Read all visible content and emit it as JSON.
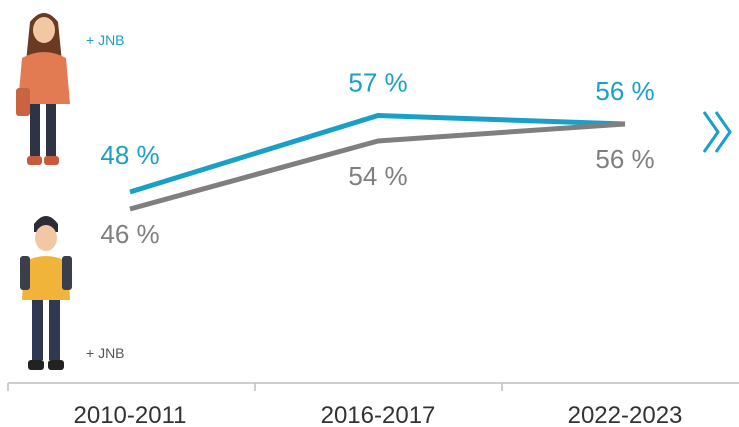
{
  "chart_data": {
    "type": "line",
    "categories": [
      "2010-2011",
      "2016-2017",
      "2022-2023"
    ],
    "series": [
      {
        "name": "+ JNB",
        "group": "girls",
        "color": "#1aa0c6",
        "values": [
          48,
          57,
          56
        ],
        "labels": [
          "48 %",
          "57 %",
          "56 %"
        ]
      },
      {
        "name": "+ JNB",
        "group": "boys",
        "color": "#7f7f7f",
        "values": [
          46,
          54,
          56
        ],
        "labels": [
          "46 %",
          "54 %",
          "56 %"
        ]
      }
    ],
    "ylim": [
      40,
      60
    ],
    "grid": false,
    "legend": "left, with illustrated figures"
  },
  "figures": {
    "girl_label": "+ JNB",
    "boy_label": "+ JNB"
  },
  "icons": {
    "next": "double-chevron-right-icon"
  },
  "colors": {
    "accent": "#1aa0c6",
    "grey": "#7f7f7f",
    "axis": "#bfbfbf"
  }
}
